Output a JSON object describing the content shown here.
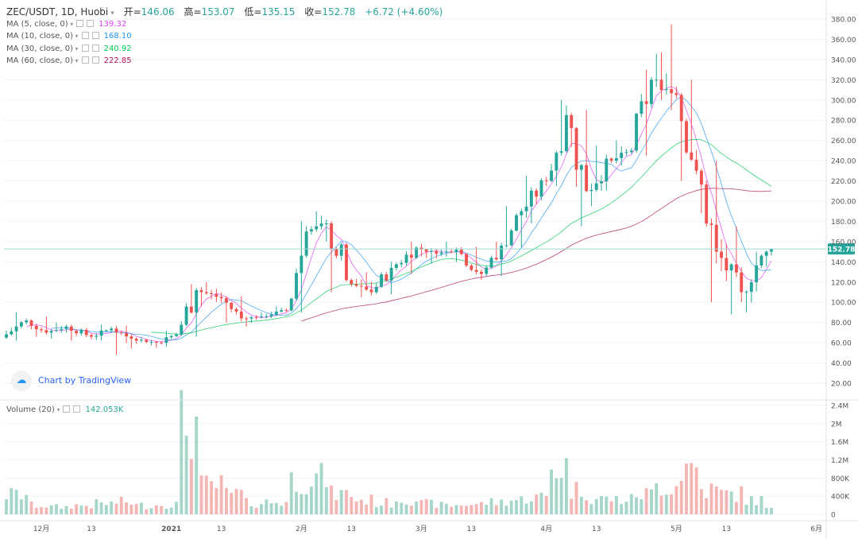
{
  "header": {
    "symbol": "ZEC/USDT, 1D, Huobi",
    "open_label": "开=",
    "open": "146.06",
    "high_label": "高=",
    "high": "153.07",
    "low_label": "低=",
    "low": "135.15",
    "close_label": "收=",
    "close": "152.78",
    "change": "+6.72 (+4.60%)"
  },
  "indicators": [
    {
      "label": "MA (5, close, 0)",
      "value": "139.32",
      "color": "#e040fb"
    },
    {
      "label": "MA (10, close, 0)",
      "value": "168.10",
      "color": "#2196f3"
    },
    {
      "label": "MA (30, close, 0)",
      "value": "240.92",
      "color": "#00c853"
    },
    {
      "label": "MA (60, close, 0)",
      "value": "222.85",
      "color": "#ad1457"
    }
  ],
  "volume_indicator": {
    "label": "Volume (20)",
    "value": "142.053K",
    "color": "#26a69a"
  },
  "watermark": "Chart by TradingView",
  "last_price_tag": "152.78",
  "colors": {
    "up": "#26a69a",
    "down": "#ef5350",
    "up_vol": "#a5d6c9",
    "down_vol": "#f4b6b4",
    "grid": "#f0f3fa"
  },
  "chart_data": {
    "type": "candlestick",
    "price_axis": {
      "min": 20,
      "max": 380,
      "ticks": [
        20,
        40,
        60,
        80,
        100,
        120,
        140,
        160,
        180,
        200,
        220,
        240,
        260,
        280,
        300,
        320,
        340,
        360,
        380
      ]
    },
    "price_tick_labels": [
      "20.00",
      "40.00",
      "60.00",
      "80.00",
      "100.00",
      "120.00",
      "140.00",
      "160.00",
      "180.00",
      "200.00",
      "220.00",
      "240.00",
      "260.00",
      "280.00",
      "300.00",
      "320.00",
      "340.00",
      "360.00",
      "380.00"
    ],
    "volume_axis": {
      "min": 0,
      "max": 2400000,
      "tick_labels": [
        "0",
        "400K",
        "800K",
        "1.2M",
        "1.6M",
        "2M",
        "2.4M"
      ],
      "ticks": [
        0,
        400000,
        800000,
        1200000,
        1600000,
        2000000,
        2400000
      ]
    },
    "time_axis_labels": [
      "12月",
      "13",
      "2021",
      "13",
      "2月",
      "13",
      "3月",
      "13",
      "4月",
      "13",
      "5月",
      "13",
      "6月"
    ],
    "time_axis_day_index": [
      7,
      17,
      33,
      43,
      59,
      69,
      83,
      93,
      108,
      118,
      134,
      144,
      162
    ],
    "grid": true,
    "ohlc_weekly": [
      {
        "o": 65,
        "h": 90,
        "l": 62,
        "c": 82
      },
      {
        "o": 82,
        "h": 86,
        "l": 66,
        "c": 70
      },
      {
        "o": 70,
        "h": 80,
        "l": 64,
        "c": 76
      },
      {
        "o": 76,
        "h": 78,
        "l": 62,
        "c": 66
      },
      {
        "o": 66,
        "h": 78,
        "l": 62,
        "c": 74
      },
      {
        "o": 74,
        "h": 77,
        "l": 48,
        "c": 64
      },
      {
        "o": 64,
        "h": 66,
        "l": 55,
        "c": 60
      },
      {
        "o": 60,
        "h": 72,
        "l": 56,
        "c": 68
      },
      {
        "o": 68,
        "h": 118,
        "l": 66,
        "c": 112
      },
      {
        "o": 112,
        "h": 120,
        "l": 96,
        "c": 104
      },
      {
        "o": 104,
        "h": 106,
        "l": 80,
        "c": 84
      },
      {
        "o": 84,
        "h": 90,
        "l": 76,
        "c": 86
      },
      {
        "o": 86,
        "h": 96,
        "l": 84,
        "c": 92
      },
      {
        "o": 92,
        "h": 180,
        "l": 90,
        "c": 170
      },
      {
        "o": 170,
        "h": 190,
        "l": 160,
        "c": 178
      },
      {
        "o": 178,
        "h": 180,
        "l": 110,
        "c": 118
      },
      {
        "o": 118,
        "h": 130,
        "l": 105,
        "c": 110
      },
      {
        "o": 110,
        "h": 140,
        "l": 108,
        "c": 134
      },
      {
        "o": 134,
        "h": 160,
        "l": 128,
        "c": 154
      },
      {
        "o": 154,
        "h": 158,
        "l": 138,
        "c": 148
      },
      {
        "o": 148,
        "h": 160,
        "l": 140,
        "c": 152
      },
      {
        "o": 152,
        "h": 155,
        "l": 122,
        "c": 128
      },
      {
        "o": 128,
        "h": 160,
        "l": 126,
        "c": 156
      },
      {
        "o": 156,
        "h": 195,
        "l": 154,
        "c": 190
      },
      {
        "o": 190,
        "h": 225,
        "l": 178,
        "c": 220
      },
      {
        "o": 220,
        "h": 300,
        "l": 215,
        "c": 285
      },
      {
        "o": 285,
        "h": 290,
        "l": 175,
        "c": 210
      },
      {
        "o": 210,
        "h": 255,
        "l": 195,
        "c": 240
      },
      {
        "o": 240,
        "h": 260,
        "l": 235,
        "c": 250
      },
      {
        "o": 250,
        "h": 330,
        "l": 245,
        "c": 320
      },
      {
        "o": 320,
        "h": 375,
        "l": 290,
        "c": 305
      },
      {
        "o": 305,
        "h": 320,
        "l": 220,
        "c": 230
      },
      {
        "o": 230,
        "h": 240,
        "l": 100,
        "c": 150
      },
      {
        "o": 150,
        "h": 175,
        "l": 88,
        "c": 110
      },
      {
        "o": 110,
        "h": 150,
        "l": 90,
        "c": 146
      },
      {
        "o": 146,
        "h": 153.07,
        "l": 135.15,
        "c": 152.78
      }
    ],
    "volume_weekly": [
      480000,
      220000,
      180000,
      220000,
      260000,
      300000,
      220000,
      250000,
      2200000,
      700000,
      500000,
      280000,
      300000,
      850000,
      900000,
      500000,
      350000,
      280000,
      380000,
      260000,
      220000,
      250000,
      300000,
      350000,
      420000,
      1150000,
      600000,
      380000,
      360000,
      500000,
      700000,
      1150000,
      600000,
      500000,
      350000,
      142053
    ]
  }
}
